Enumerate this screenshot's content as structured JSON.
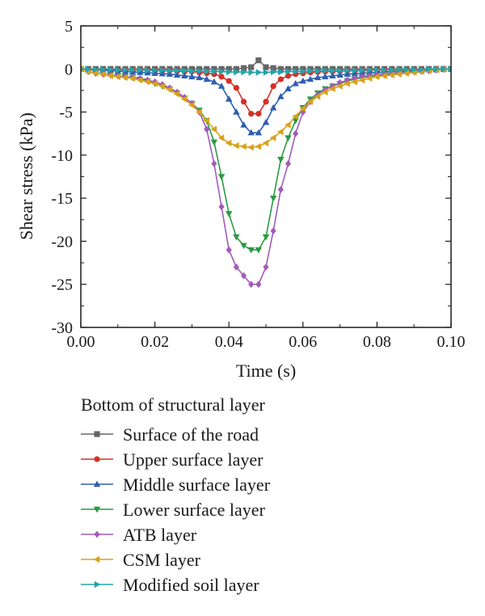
{
  "chart_data": {
    "type": "line",
    "title": "",
    "xlabel": "Time (s)",
    "ylabel": "Shear stress (kPa)",
    "xlim": [
      0.0,
      0.1
    ],
    "ylim": [
      -30,
      5
    ],
    "xticks": [
      0.0,
      0.02,
      0.04,
      0.06,
      0.08,
      0.1
    ],
    "xtick_labels": [
      "0.00",
      "0.02",
      "0.04",
      "0.06",
      "0.08",
      "0.10"
    ],
    "yticks": [
      5,
      0,
      -5,
      -10,
      -15,
      -20,
      -25,
      -30
    ],
    "ytick_labels": [
      "5",
      "0",
      "-5",
      "-10",
      "-15",
      "-20",
      "-25",
      "-30"
    ],
    "grid": false,
    "legend_title": "Bottom of structural layer",
    "legend_position": "below",
    "x": [
      0.0,
      0.002,
      0.004,
      0.006,
      0.008,
      0.01,
      0.012,
      0.014,
      0.016,
      0.018,
      0.02,
      0.022,
      0.024,
      0.026,
      0.028,
      0.03,
      0.032,
      0.034,
      0.036,
      0.038,
      0.04,
      0.042,
      0.044,
      0.046,
      0.048,
      0.05,
      0.052,
      0.054,
      0.056,
      0.058,
      0.06,
      0.062,
      0.064,
      0.066,
      0.068,
      0.07,
      0.072,
      0.074,
      0.076,
      0.078,
      0.08,
      0.082,
      0.084,
      0.086,
      0.088,
      0.09,
      0.092,
      0.094,
      0.096,
      0.098,
      0.1
    ],
    "series": [
      {
        "name": "Surface of the road",
        "color": "#666666",
        "marker": "square",
        "values": [
          0,
          0,
          0,
          0,
          0,
          0,
          0,
          0,
          0,
          0,
          0,
          0,
          0,
          0,
          0,
          0,
          0,
          0,
          0,
          0,
          0,
          0,
          0.1,
          0.2,
          1.0,
          0.2,
          0.1,
          0,
          0,
          0,
          0,
          0,
          0,
          0,
          0,
          0,
          0,
          0,
          0,
          0,
          0,
          0,
          0,
          0,
          0,
          0,
          0,
          0,
          0,
          0,
          0
        ]
      },
      {
        "name": "Upper surface layer",
        "color": "#d62f27",
        "marker": "circle",
        "values": [
          0,
          -0.05,
          -0.1,
          -0.1,
          -0.1,
          -0.1,
          -0.1,
          -0.1,
          -0.15,
          -0.15,
          -0.2,
          -0.2,
          -0.2,
          -0.25,
          -0.3,
          -0.3,
          -0.4,
          -0.5,
          -0.6,
          -0.9,
          -1.4,
          -2.2,
          -3.8,
          -5.2,
          -5.2,
          -3.8,
          -2.0,
          -1.2,
          -0.8,
          -0.6,
          -0.5,
          -0.4,
          -0.35,
          -0.3,
          -0.3,
          -0.25,
          -0.2,
          -0.2,
          -0.2,
          -0.15,
          -0.15,
          -0.1,
          -0.1,
          -0.1,
          -0.1,
          -0.1,
          -0.05,
          -0.05,
          0,
          0,
          0
        ]
      },
      {
        "name": "Middle surface layer",
        "color": "#2e5eb0",
        "marker": "triangle-up",
        "values": [
          0,
          -0.1,
          -0.1,
          -0.15,
          -0.2,
          -0.25,
          -0.3,
          -0.35,
          -0.4,
          -0.45,
          -0.5,
          -0.55,
          -0.6,
          -0.7,
          -0.8,
          -0.9,
          -1.0,
          -1.2,
          -1.5,
          -2.0,
          -3.5,
          -5.0,
          -6.5,
          -7.4,
          -7.4,
          -6.2,
          -4.5,
          -3.2,
          -2.3,
          -1.7,
          -1.4,
          -1.2,
          -1.0,
          -0.9,
          -0.8,
          -0.7,
          -0.6,
          -0.55,
          -0.5,
          -0.45,
          -0.4,
          -0.35,
          -0.3,
          -0.3,
          -0.25,
          -0.2,
          -0.15,
          -0.1,
          -0.1,
          -0.05,
          0
        ]
      },
      {
        "name": "Lower surface layer",
        "color": "#2a9a42",
        "marker": "triangle-down",
        "values": [
          0,
          -0.3,
          -0.5,
          -0.6,
          -0.7,
          -0.8,
          -0.9,
          -1.0,
          -1.2,
          -1.4,
          -1.7,
          -2.0,
          -2.3,
          -2.8,
          -3.4,
          -4.0,
          -4.8,
          -6.0,
          -8.5,
          -12.5,
          -16.8,
          -19.5,
          -20.5,
          -21.0,
          -21.0,
          -19.5,
          -15.0,
          -10.5,
          -8.0,
          -6.0,
          -4.5,
          -3.5,
          -2.8,
          -2.3,
          -2.0,
          -1.7,
          -1.4,
          -1.2,
          -1.0,
          -0.9,
          -0.8,
          -0.7,
          -0.6,
          -0.5,
          -0.4,
          -0.35,
          -0.3,
          -0.2,
          -0.15,
          -0.05,
          0
        ]
      },
      {
        "name": "ATB layer",
        "color": "#a35bb8",
        "marker": "diamond",
        "values": [
          0,
          -0.3,
          -0.5,
          -0.6,
          -0.7,
          -0.8,
          -0.9,
          -1.0,
          -1.1,
          -1.3,
          -1.5,
          -1.8,
          -2.2,
          -2.7,
          -3.3,
          -4.0,
          -5.0,
          -7.0,
          -11.0,
          -16.0,
          -21.0,
          -23.0,
          -24.0,
          -25.0,
          -25.0,
          -23.0,
          -18.8,
          -14.0,
          -11.0,
          -7.5,
          -5.0,
          -3.8,
          -3.0,
          -2.4,
          -2.0,
          -1.6,
          -1.3,
          -1.1,
          -0.9,
          -0.8,
          -0.7,
          -0.6,
          -0.5,
          -0.45,
          -0.4,
          -0.3,
          -0.25,
          -0.2,
          -0.1,
          -0.05,
          0
        ]
      },
      {
        "name": "CSM layer",
        "color": "#d9a21a",
        "marker": "triangle-left",
        "values": [
          0,
          -0.3,
          -0.5,
          -0.6,
          -0.8,
          -0.9,
          -1.0,
          -1.1,
          -1.3,
          -1.5,
          -1.7,
          -2.0,
          -2.4,
          -2.9,
          -3.5,
          -4.2,
          -5.0,
          -6.0,
          -7.0,
          -8.0,
          -8.6,
          -8.9,
          -9.0,
          -9.1,
          -9.0,
          -8.6,
          -8.0,
          -7.3,
          -6.5,
          -5.5,
          -4.6,
          -3.8,
          -3.2,
          -2.7,
          -2.3,
          -2.0,
          -1.7,
          -1.5,
          -1.3,
          -1.1,
          -0.9,
          -0.8,
          -0.7,
          -0.6,
          -0.5,
          -0.4,
          -0.3,
          -0.2,
          -0.1,
          -0.05,
          0
        ]
      },
      {
        "name": "Modified soil layer",
        "color": "#27a3a8",
        "marker": "triangle-right",
        "values": [
          0,
          -0.02,
          -0.05,
          -0.05,
          -0.05,
          -0.1,
          -0.1,
          -0.1,
          -0.1,
          -0.15,
          -0.15,
          -0.15,
          -0.2,
          -0.2,
          -0.2,
          -0.25,
          -0.25,
          -0.3,
          -0.3,
          -0.3,
          -0.35,
          -0.35,
          -0.35,
          -0.4,
          -0.4,
          -0.4,
          -0.35,
          -0.35,
          -0.3,
          -0.3,
          -0.3,
          -0.25,
          -0.25,
          -0.2,
          -0.2,
          -0.2,
          -0.15,
          -0.15,
          -0.15,
          -0.1,
          -0.1,
          -0.1,
          -0.1,
          -0.05,
          -0.05,
          -0.05,
          -0.05,
          0,
          0,
          0,
          0
        ]
      }
    ]
  }
}
